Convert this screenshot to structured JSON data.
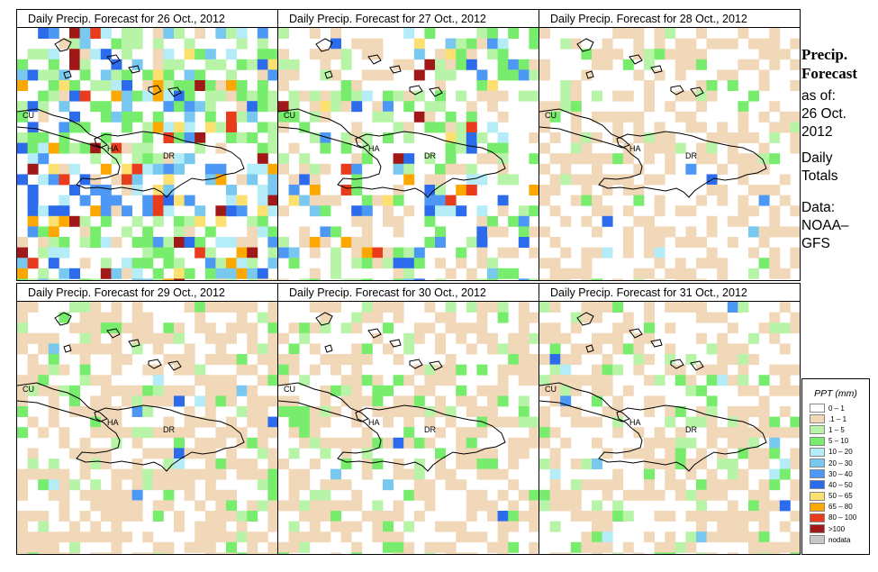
{
  "panels": [
    {
      "title": "Daily Precip. Forecast for  26 Oct., 2012",
      "profile": [
        0.55,
        0.75,
        1,
        0.2
      ]
    },
    {
      "title": "Daily Precip. Forecast for  27 Oct., 2012",
      "profile": [
        0.35,
        0.65,
        0.55,
        0.5
      ]
    },
    {
      "title": "Daily Precip. Forecast for  28 Oct., 2012",
      "profile": [
        0.2,
        0.25,
        0.05,
        0.9
      ]
    },
    {
      "title": "Daily Precip. Forecast for  29 Oct., 2012",
      "profile": [
        0.35,
        0.3,
        0.05,
        0.85
      ]
    },
    {
      "title": "Daily Precip. Forecast for  30 Oct., 2012",
      "profile": [
        0.3,
        0.4,
        0.05,
        0.8
      ]
    },
    {
      "title": "Daily Precip. Forecast for  31 Oct., 2012",
      "profile": [
        0.3,
        0.45,
        0.08,
        0.75
      ]
    }
  ],
  "map_labels": {
    "cuba": "CU",
    "haiti": "HA",
    "dominican_republic": "DR"
  },
  "side": {
    "title_line1": "Precip.",
    "title_line2": "Forecast",
    "asof": "as of:",
    "date_line1": "26 Oct.",
    "date_line2": "2012",
    "totals_line1": "Daily",
    "totals_line2": "Totals",
    "data_line1": "Data:",
    "data_line2": "NOAA–",
    "data_line3": "GFS"
  },
  "legend": {
    "title": "PPT (mm)",
    "items": [
      {
        "label": "0 – 1",
        "color": "#ffffff"
      },
      {
        "label": ".1 – 1",
        "color": "#f0d8b8"
      },
      {
        "label": "1 – 5",
        "color": "#b8f4a8"
      },
      {
        "label": "5 – 10",
        "color": "#78ec6c"
      },
      {
        "label": "10 – 20",
        "color": "#b4ecf8"
      },
      {
        "label": "20 – 30",
        "color": "#78c8f0"
      },
      {
        "label": "30 – 40",
        "color": "#4c98f4"
      },
      {
        "label": "40 – 50",
        "color": "#2c6cec"
      },
      {
        "label": "50 – 65",
        "color": "#fce070"
      },
      {
        "label": "65 – 80",
        "color": "#fca800"
      },
      {
        "label": "80 – 100",
        "color": "#e83c1c"
      },
      {
        "label": ">100",
        "color": "#a01818"
      },
      {
        "label": "nodata",
        "color": "#c8c8c8"
      }
    ]
  }
}
